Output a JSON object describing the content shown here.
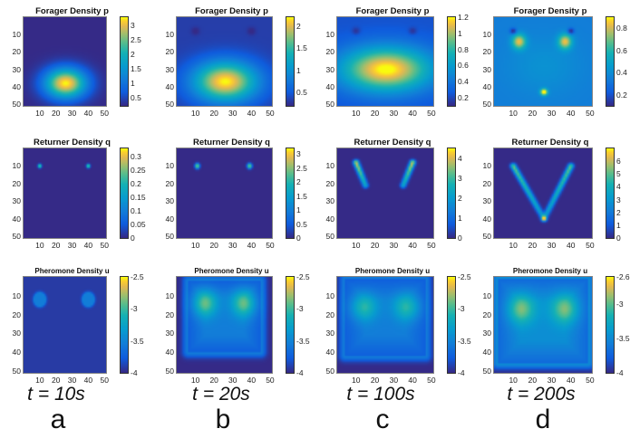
{
  "chart_data": [
    {
      "type": "heatmap",
      "title": "Forager Density p",
      "column": "a",
      "row": 1,
      "xlim": [
        0,
        51
      ],
      "ylim": [
        0,
        51
      ],
      "xticks": [
        "10",
        "20",
        "30",
        "40",
        "50"
      ],
      "yticks": [
        "10",
        "20",
        "30",
        "40",
        "50"
      ],
      "colorbar": {
        "min": 0.2,
        "max": 3.3,
        "ticks": [
          "3",
          "2.5",
          "2",
          "1.5",
          "1",
          "0.5"
        ],
        "tick_values": [
          3,
          2.5,
          2,
          1.5,
          1,
          0.5
        ]
      },
      "field": {
        "background": 0.0,
        "blobs": [
          {
            "x": 26,
            "y": 38,
            "sx": 9,
            "sy": 6,
            "amp": 1.0
          },
          {
            "x": 10,
            "y": 8,
            "sx": 1.5,
            "sy": 1.5,
            "amp": -0.06
          },
          {
            "x": 40,
            "y": 8,
            "sx": 1.5,
            "sy": 1.5,
            "amp": -0.06
          }
        ]
      }
    },
    {
      "type": "heatmap",
      "title": "Forager Density p",
      "column": "b",
      "row": 1,
      "xlim": [
        0,
        51
      ],
      "ylim": [
        0,
        51
      ],
      "xticks": [
        "10",
        "20",
        "30",
        "40",
        "50"
      ],
      "yticks": [
        "10",
        "20",
        "30",
        "40",
        "50"
      ],
      "colorbar": {
        "min": 0.2,
        "max": 2.2,
        "ticks": [
          "2",
          "1.5",
          "1",
          "0.5"
        ],
        "tick_values": [
          2,
          1.5,
          1,
          0.5
        ]
      },
      "field": {
        "background": 0.06,
        "blobs": [
          {
            "x": 26,
            "y": 37,
            "sx": 12,
            "sy": 8,
            "amp": 0.94
          },
          {
            "x": 10,
            "y": 8,
            "sx": 1.5,
            "sy": 1.5,
            "amp": -0.08
          },
          {
            "x": 40,
            "y": 8,
            "sx": 1.5,
            "sy": 1.5,
            "amp": -0.08
          }
        ]
      }
    },
    {
      "type": "heatmap",
      "title": "Forager Density p",
      "column": "c",
      "row": 1,
      "xlim": [
        0,
        51
      ],
      "ylim": [
        0,
        51
      ],
      "xticks": [
        "10",
        "20",
        "30",
        "40",
        "50"
      ],
      "yticks": [
        "10",
        "20",
        "30",
        "40",
        "50"
      ],
      "colorbar": {
        "min": 0.1,
        "max": 1.2,
        "ticks": [
          "1.2",
          "1",
          "0.8",
          "0.6",
          "0.4",
          "0.2"
        ],
        "tick_values": [
          1.2,
          1,
          0.8,
          0.6,
          0.4,
          0.2
        ]
      },
      "field": {
        "background": 0.12,
        "blobs": [
          {
            "x": 26,
            "y": 30,
            "sx": 17,
            "sy": 9,
            "amp": 0.9
          },
          {
            "x": 10,
            "y": 8,
            "sx": 1.5,
            "sy": 1.5,
            "amp": -0.12
          },
          {
            "x": 40,
            "y": 8,
            "sx": 1.5,
            "sy": 1.5,
            "amp": -0.12
          }
        ]
      }
    },
    {
      "type": "heatmap",
      "title": "Forager Density p",
      "column": "d",
      "row": 1,
      "xlim": [
        0,
        51
      ],
      "ylim": [
        0,
        51
      ],
      "xticks": [
        "10",
        "20",
        "30",
        "40",
        "50"
      ],
      "yticks": [
        "10",
        "20",
        "30",
        "40",
        "50"
      ],
      "colorbar": {
        "min": 0.1,
        "max": 0.9,
        "ticks": [
          "0.8",
          "0.6",
          "0.4",
          "0.2"
        ],
        "tick_values": [
          0.8,
          0.6,
          0.4,
          0.2
        ]
      },
      "field": {
        "background": 0.3,
        "blobs": [
          {
            "x": 13,
            "y": 14,
            "sx": 2.5,
            "sy": 3,
            "amp": 0.6
          },
          {
            "x": 37,
            "y": 14,
            "sx": 2.5,
            "sy": 3,
            "amp": 0.6
          },
          {
            "x": 26,
            "y": 43,
            "sx": 1.3,
            "sy": 1.3,
            "amp": 0.75
          },
          {
            "x": 26,
            "y": 28,
            "sx": 14,
            "sy": 12,
            "amp": 0.1
          },
          {
            "x": 10,
            "y": 8,
            "sx": 1.2,
            "sy": 1.2,
            "amp": -0.35
          },
          {
            "x": 40,
            "y": 8,
            "sx": 1.2,
            "sy": 1.2,
            "amp": -0.35
          }
        ]
      }
    },
    {
      "type": "heatmap",
      "title": "Returner Density q",
      "column": "a",
      "row": 2,
      "xlim": [
        0,
        51
      ],
      "ylim": [
        0,
        51
      ],
      "xticks": [
        "10",
        "20",
        "30",
        "40",
        "50"
      ],
      "yticks": [
        "10",
        "20",
        "30",
        "40",
        "50"
      ],
      "colorbar": {
        "min": 0,
        "max": 0.33,
        "ticks": [
          "0.3",
          "0.25",
          "0.2",
          "0.15",
          "0.1",
          "0.05",
          "0"
        ],
        "tick_values": [
          0.3,
          0.25,
          0.2,
          0.15,
          0.1,
          0.05,
          0
        ]
      },
      "field": {
        "background": 0.0,
        "blobs": [
          {
            "x": 10,
            "y": 10,
            "sx": 0.7,
            "sy": 0.7,
            "amp": 0.95
          },
          {
            "x": 40,
            "y": 10,
            "sx": 0.7,
            "sy": 0.7,
            "amp": 0.95
          }
        ]
      }
    },
    {
      "type": "heatmap",
      "title": "Returner Density q",
      "column": "b",
      "row": 2,
      "xlim": [
        0,
        51
      ],
      "ylim": [
        0,
        51
      ],
      "xticks": [
        "10",
        "20",
        "30",
        "40",
        "50"
      ],
      "yticks": [
        "10",
        "20",
        "30",
        "40",
        "50"
      ],
      "colorbar": {
        "min": 0,
        "max": 3.2,
        "ticks": [
          "3",
          "2.5",
          "2",
          "1.5",
          "1",
          "0.5",
          "0"
        ],
        "tick_values": [
          3,
          2.5,
          2,
          1.5,
          1,
          0.5,
          0
        ]
      },
      "field": {
        "background": 0.0,
        "blobs": [
          {
            "x": 11,
            "y": 10,
            "sx": 0.8,
            "sy": 1.0,
            "amp": 0.9
          },
          {
            "x": 39,
            "y": 10,
            "sx": 0.8,
            "sy": 1.0,
            "amp": 0.9
          }
        ]
      }
    },
    {
      "type": "heatmap",
      "title": "Returner Density q",
      "column": "c",
      "row": 2,
      "xlim": [
        0,
        51
      ],
      "ylim": [
        0,
        51
      ],
      "xticks": [
        "10",
        "20",
        "30",
        "40",
        "50"
      ],
      "yticks": [
        "10",
        "20",
        "30",
        "40",
        "50"
      ],
      "colorbar": {
        "min": 0,
        "max": 4.5,
        "ticks": [
          "4",
          "3",
          "2",
          "1",
          "0"
        ],
        "tick_values": [
          4,
          3,
          2,
          1,
          0
        ]
      },
      "field": {
        "background": 0.0,
        "lines": [
          {
            "x1": 10,
            "y1": 8,
            "x2": 15,
            "y2": 21,
            "w": 1.0,
            "amp": 0.9
          },
          {
            "x1": 40,
            "y1": 8,
            "x2": 35,
            "y2": 21,
            "w": 1.0,
            "amp": 0.9
          }
        ]
      }
    },
    {
      "type": "heatmap",
      "title": "Returner Density q",
      "column": "d",
      "row": 2,
      "xlim": [
        0,
        51
      ],
      "ylim": [
        0,
        51
      ],
      "xticks": [
        "10",
        "20",
        "30",
        "40",
        "50"
      ],
      "yticks": [
        "10",
        "20",
        "30",
        "40",
        "50"
      ],
      "colorbar": {
        "min": 0,
        "max": 7,
        "ticks": [
          "6",
          "5",
          "4",
          "3",
          "2",
          "1",
          "0"
        ],
        "tick_values": [
          6,
          5,
          4,
          3,
          2,
          1,
          0
        ]
      },
      "field": {
        "background": 0.0,
        "lines": [
          {
            "x1": 10,
            "y1": 10,
            "x2": 26,
            "y2": 40,
            "w": 1.0,
            "amp": 0.75
          },
          {
            "x1": 40,
            "y1": 10,
            "x2": 26,
            "y2": 40,
            "w": 1.0,
            "amp": 0.75
          }
        ],
        "blobs": [
          {
            "x": 26,
            "y": 40,
            "sx": 0.9,
            "sy": 0.9,
            "amp": 0.3
          }
        ]
      }
    },
    {
      "type": "heatmap",
      "title": "Pheromone Density u",
      "column": "a",
      "row": 3,
      "xlim": [
        0,
        51
      ],
      "ylim": [
        0,
        51
      ],
      "xticks": [
        "10",
        "20",
        "30",
        "40",
        "50"
      ],
      "yticks": [
        "10",
        "20",
        "30",
        "40",
        "50"
      ],
      "colorbar": {
        "min": -4,
        "max": -2.5,
        "ticks": [
          "-2.5",
          "-3",
          "-3.5",
          "-4"
        ],
        "tick_values": [
          -2.5,
          -3,
          -3.5,
          -4
        ]
      },
      "field": {
        "background": 0.05,
        "blobs": [
          {
            "x": 10,
            "y": 12,
            "sx": 2.6,
            "sy": 2.6,
            "amp": 0.25,
            "flat": true
          },
          {
            "x": 40,
            "y": 12,
            "sx": 2.6,
            "sy": 2.6,
            "amp": 0.25,
            "flat": true
          }
        ]
      }
    },
    {
      "type": "heatmap",
      "title": "Pheromone Density u",
      "column": "b",
      "row": 3,
      "xlim": [
        0,
        51
      ],
      "ylim": [
        0,
        51
      ],
      "xticks": [
        "10",
        "20",
        "30",
        "40",
        "50"
      ],
      "yticks": [
        "10",
        "20",
        "30",
        "40",
        "50"
      ],
      "colorbar": {
        "min": -4,
        "max": -2.5,
        "ticks": [
          "-2.5",
          "-3",
          "-3.5",
          "-4"
        ],
        "tick_values": [
          -2.5,
          -3,
          -3.5,
          -4
        ]
      },
      "field": {
        "background": 0.0,
        "region": {
          "x1": 6,
          "x2": 45,
          "y1": 2,
          "y2": 40,
          "r": 9,
          "amp": 0.3
        },
        "blobs": [
          {
            "x": 15,
            "y": 14,
            "sx": 4.5,
            "sy": 5,
            "amp": 0.45
          },
          {
            "x": 36,
            "y": 14,
            "sx": 4.5,
            "sy": 5,
            "amp": 0.45
          }
        ]
      }
    },
    {
      "type": "heatmap",
      "title": "Pheromone Density u",
      "column": "c",
      "row": 3,
      "xlim": [
        0,
        51
      ],
      "ylim": [
        0,
        51
      ],
      "xticks": [
        "10",
        "20",
        "30",
        "40",
        "50"
      ],
      "yticks": [
        "10",
        "20",
        "30",
        "40",
        "50"
      ],
      "colorbar": {
        "min": -4,
        "max": -2.5,
        "ticks": [
          "-2.5",
          "-3",
          "-3.5",
          "-4"
        ],
        "tick_values": [
          -2.5,
          -3,
          -3.5,
          -4
        ]
      },
      "field": {
        "background": 0.0,
        "region": {
          "x1": 4,
          "x2": 47,
          "y1": 1,
          "y2": 42,
          "r": 11,
          "amp": 0.3
        },
        "blobs": [
          {
            "x": 14,
            "y": 16,
            "sx": 5,
            "sy": 5,
            "amp": 0.35
          },
          {
            "x": 37,
            "y": 16,
            "sx": 5,
            "sy": 5,
            "amp": 0.35
          }
        ]
      }
    },
    {
      "type": "heatmap",
      "title": "Pheromone Density u",
      "column": "d",
      "row": 3,
      "xlim": [
        0,
        51
      ],
      "ylim": [
        0,
        51
      ],
      "xticks": [
        "10",
        "20",
        "30",
        "40",
        "50"
      ],
      "yticks": [
        "10",
        "20",
        "30",
        "40",
        "50"
      ],
      "colorbar": {
        "min": -4,
        "max": -2.6,
        "ticks": [
          "-2.6",
          "-3",
          "-3.5",
          "-4"
        ],
        "tick_values": [
          -2.6,
          -3,
          -3.5,
          -4
        ]
      },
      "field": {
        "background": 0.0,
        "region": {
          "x1": 2,
          "x2": 49,
          "y1": 1,
          "y2": 46,
          "r": 12,
          "amp": 0.38
        },
        "blobs": [
          {
            "x": 14,
            "y": 17,
            "sx": 5,
            "sy": 5.5,
            "amp": 0.4
          },
          {
            "x": 37,
            "y": 17,
            "sx": 5,
            "sy": 5.5,
            "amp": 0.4
          }
        ]
      }
    }
  ],
  "time_labels": [
    "t = 10s",
    "t = 20s",
    "t = 100s",
    "t = 200s"
  ],
  "column_letters": [
    "a",
    "b",
    "c",
    "d"
  ]
}
